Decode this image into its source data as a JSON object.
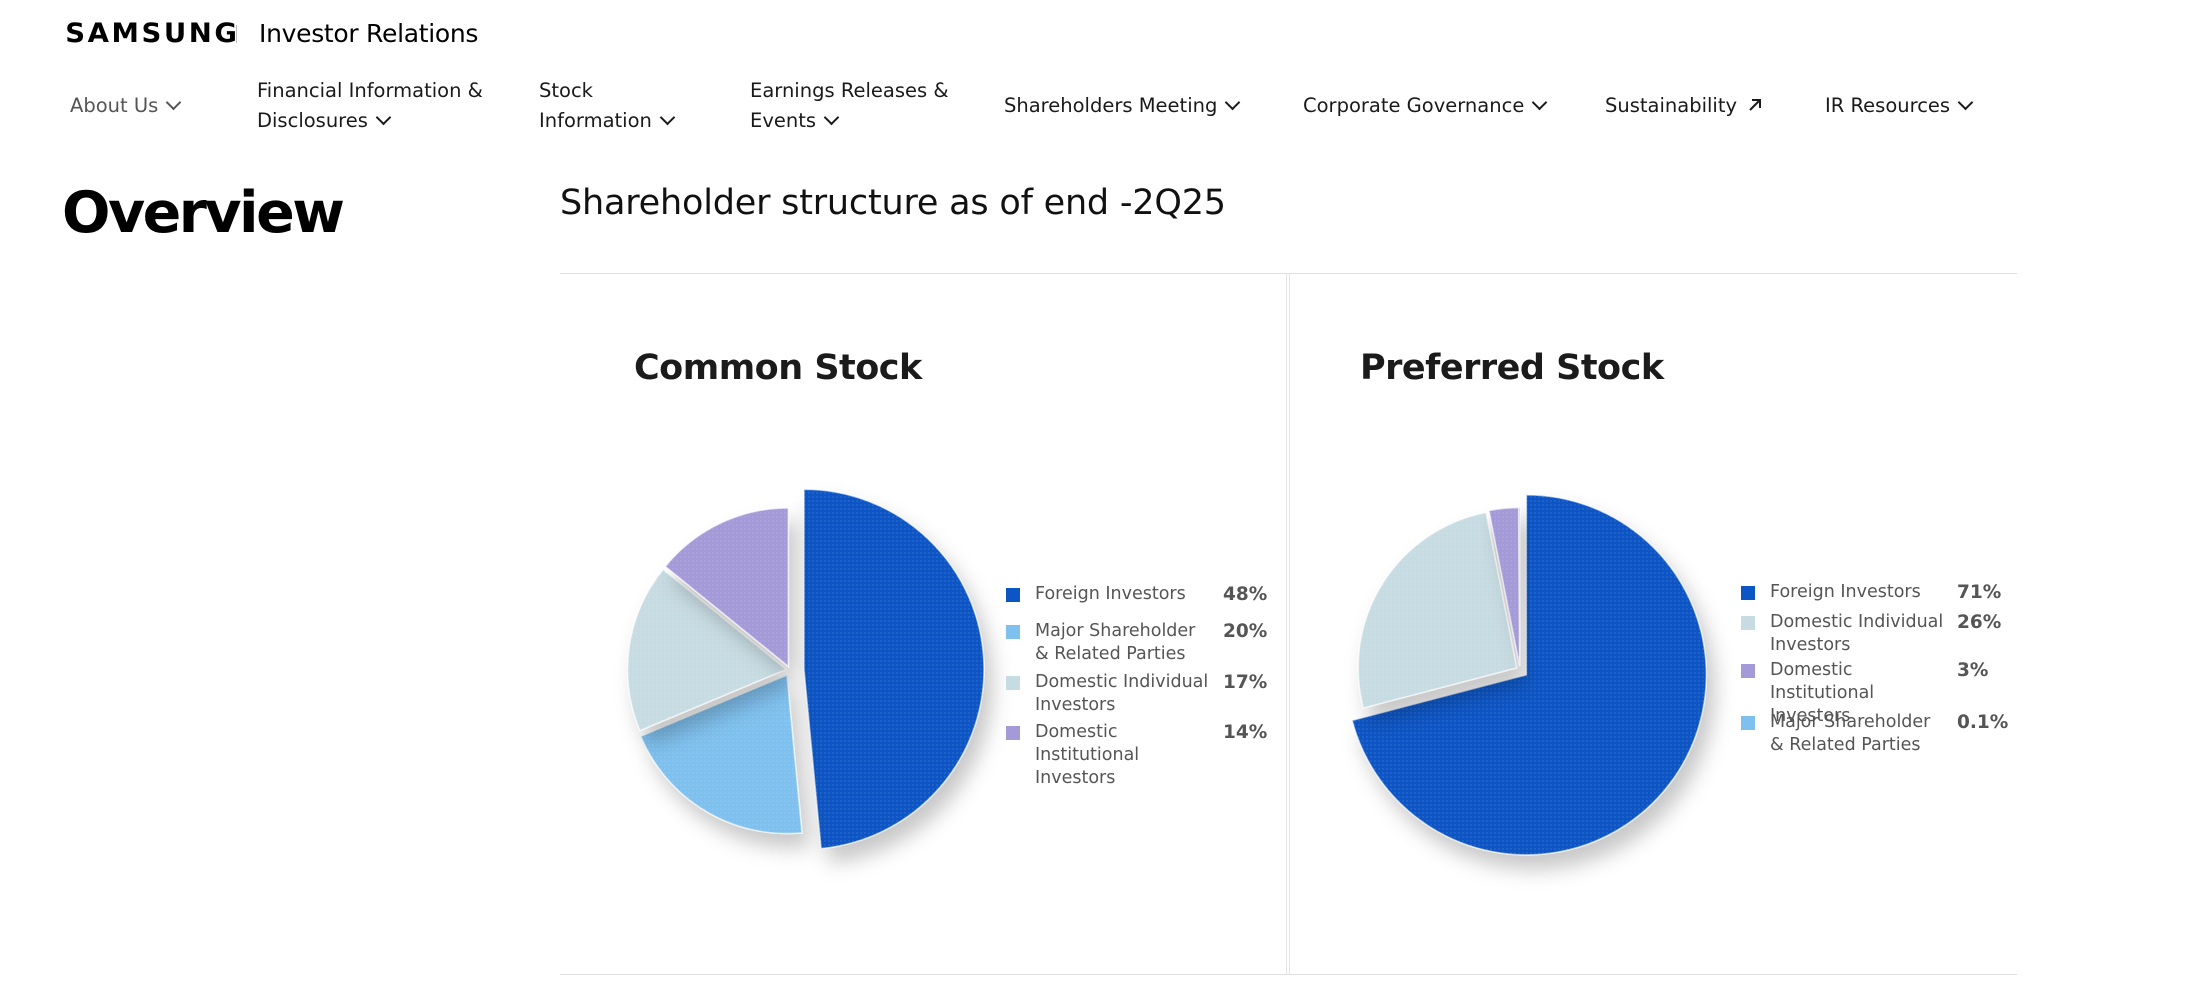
{
  "header": {
    "brand": "SAMSUNG",
    "section": "Investor Relations"
  },
  "nav": {
    "items": [
      {
        "label_line1": "About Us",
        "label_line2": ""
      },
      {
        "label_line1": "Financial Information &",
        "label_line2": "Disclosures"
      },
      {
        "label_line1": "Stock",
        "label_line2": "Information"
      },
      {
        "label_line1": "Earnings Releases &",
        "label_line2": "Events"
      },
      {
        "label_line1": "Shareholders Meeting",
        "label_line2": ""
      },
      {
        "label_line1": "Corporate Governance",
        "label_line2": ""
      },
      {
        "label_line1": "Sustainability",
        "label_line2": ""
      },
      {
        "label_line1": "IR Resources",
        "label_line2": ""
      }
    ]
  },
  "sidebar": {
    "title": "Overview"
  },
  "main": {
    "title": "Shareholder structure as of end -2Q25"
  },
  "colors": {
    "foreign": "#0b55c4",
    "major": "#7ec0ee",
    "domestic_individual": "#c7dbe2",
    "domestic_institutional": "#a49ad8"
  },
  "chart_data": [
    {
      "type": "pie",
      "title": "Common Stock",
      "series": [
        {
          "name": "Foreign Investors",
          "value": 48,
          "label": "48%",
          "label_lines": [
            "Foreign Investors"
          ],
          "color": "#0b55c4"
        },
        {
          "name": "Major Shareholder & Related Parties",
          "value": 20,
          "label": "20%",
          "label_lines": [
            "Major Shareholder",
            "& Related Parties"
          ],
          "color": "#7ec0ee"
        },
        {
          "name": "Domestic Individual Investors",
          "value": 17,
          "label": "17%",
          "label_lines": [
            "Domestic Individual",
            "Investors"
          ],
          "color": "#c7dbe2"
        },
        {
          "name": "Domestic Institutional Investors",
          "value": 14,
          "label": "14%",
          "label_lines": [
            "Domestic Institutional",
            "Investors"
          ],
          "color": "#a49ad8"
        }
      ]
    },
    {
      "type": "pie",
      "title": "Preferred Stock",
      "series": [
        {
          "name": "Foreign Investors",
          "value": 71,
          "label": "71%",
          "label_lines": [
            "Foreign Investors"
          ],
          "color": "#0b55c4"
        },
        {
          "name": "Domestic Individual Investors",
          "value": 26,
          "label": "26%",
          "label_lines": [
            "Domestic Individual",
            "Investors"
          ],
          "color": "#c7dbe2"
        },
        {
          "name": "Domestic Institutional Investors",
          "value": 3,
          "label": "3%",
          "label_lines": [
            "Domestic Institutional",
            "Investors"
          ],
          "color": "#a49ad8"
        },
        {
          "name": "Major Shareholder & Related Parties",
          "value": 0.1,
          "label": "0.1%",
          "label_lines": [
            "Major Shareholder",
            "& Related Parties"
          ],
          "color": "#7ec0ee"
        }
      ]
    }
  ]
}
